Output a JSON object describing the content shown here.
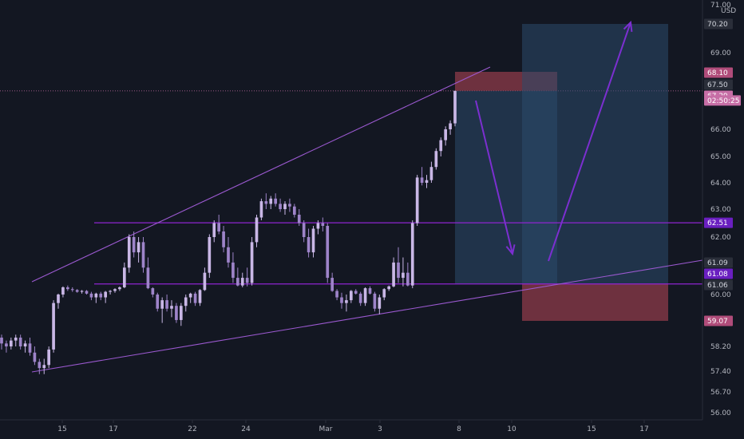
{
  "chart_data": {
    "type": "candlestick",
    "currency": "USD",
    "colors": {
      "background": "#131722",
      "candle_up": "#c9b7e6",
      "candle_down": "#9e84c9",
      "trendline": "#9b59d0",
      "level_line": "#8e24d0",
      "arrow": "#7b2fd0",
      "stop_zone": "#8d3b4a",
      "target_zone": "#2c4a6b",
      "axis_text": "#b2b5be"
    },
    "y_axis": {
      "ticks": [
        "56.00",
        "56.70",
        "57.40",
        "58.20",
        "59.07",
        "60.00",
        "61.06",
        "62.00",
        "63.00",
        "64.00",
        "65.00",
        "66.00",
        "67.50",
        "69.00",
        "70.20",
        "71.00"
      ],
      "range": [
        55.5,
        71.2
      ]
    },
    "x_axis": {
      "ticks": [
        {
          "label": "15",
          "x": 78
        },
        {
          "label": "17",
          "x": 142
        },
        {
          "label": "22",
          "x": 241
        },
        {
          "label": "24",
          "x": 308
        },
        {
          "label": "Mar",
          "x": 408
        },
        {
          "label": "3",
          "x": 476
        },
        {
          "label": "8",
          "x": 575
        },
        {
          "label": "10",
          "x": 641
        },
        {
          "label": "15",
          "x": 741
        },
        {
          "label": "17",
          "x": 807
        }
      ]
    },
    "price_tags": [
      {
        "label": "70.20",
        "bg": "#2a2e39",
        "fg": "#d1d4dc"
      },
      {
        "label": "68.10",
        "bg": "#b04c7a",
        "fg": "#ffffff"
      },
      {
        "label": "67.50",
        "bg": "#2a2e39",
        "fg": "#d1d4dc"
      },
      {
        "label": "67.29",
        "bg": "#c76ea6",
        "fg": "#ffffff"
      },
      {
        "label": "02:50:25",
        "bg": "#c76ea6",
        "fg": "#ffffff"
      },
      {
        "label": "62.51",
        "bg": "#6a1fc0",
        "fg": "#ffffff"
      },
      {
        "label": "61.09",
        "bg": "#2a2e39",
        "fg": "#d1d4dc"
      },
      {
        "label": "61.08",
        "bg": "#6a1fc0",
        "fg": "#ffffff"
      },
      {
        "label": "61.06",
        "bg": "#2a2e39",
        "fg": "#d1d4dc"
      },
      {
        "label": "59.07",
        "bg": "#b04c7a",
        "fg": "#ffffff"
      }
    ],
    "horizontal_levels": [
      62.51,
      61.08
    ],
    "last_price": 67.29,
    "candles": [
      [
        58.5,
        58.6,
        58.1,
        58.3
      ],
      [
        58.3,
        58.4,
        58.0,
        58.2
      ],
      [
        58.2,
        58.5,
        58.1,
        58.4
      ],
      [
        58.4,
        58.6,
        58.2,
        58.5
      ],
      [
        58.5,
        58.6,
        58.1,
        58.2
      ],
      [
        58.2,
        58.4,
        58.0,
        58.3
      ],
      [
        58.3,
        58.5,
        57.9,
        58.0
      ],
      [
        58.0,
        58.2,
        57.6,
        57.7
      ],
      [
        57.7,
        57.8,
        57.3,
        57.5
      ],
      [
        57.5,
        57.8,
        57.3,
        57.6
      ],
      [
        57.6,
        58.2,
        57.5,
        58.1
      ],
      [
        58.1,
        59.8,
        58.0,
        59.7
      ],
      [
        59.7,
        60.1,
        59.5,
        60.0
      ],
      [
        60.0,
        60.9,
        59.9,
        60.8
      ],
      [
        60.8,
        61.0,
        60.4,
        60.6
      ],
      [
        60.6,
        60.8,
        60.3,
        60.5
      ],
      [
        60.5,
        60.6,
        60.2,
        60.3
      ],
      [
        60.3,
        60.5,
        60.1,
        60.4
      ],
      [
        60.4,
        60.5,
        60.0,
        60.1
      ],
      [
        60.1,
        60.3,
        59.8,
        59.9
      ],
      [
        59.9,
        60.2,
        59.7,
        60.1
      ],
      [
        60.1,
        60.3,
        59.8,
        59.9
      ],
      [
        59.9,
        60.4,
        59.7,
        60.3
      ],
      [
        60.3,
        60.5,
        60.0,
        60.4
      ],
      [
        60.4,
        60.7,
        60.2,
        60.6
      ],
      [
        60.6,
        60.9,
        60.4,
        60.8
      ],
      [
        60.8,
        61.5,
        60.7,
        61.4
      ],
      [
        61.4,
        62.1,
        61.3,
        62.0
      ],
      [
        62.0,
        62.2,
        61.6,
        61.7
      ],
      [
        61.7,
        62.0,
        61.5,
        61.9
      ],
      [
        61.9,
        62.0,
        61.3,
        61.4
      ],
      [
        61.4,
        61.6,
        60.6,
        60.7
      ],
      [
        60.7,
        60.8,
        59.9,
        60.0
      ],
      [
        60.0,
        60.2,
        59.4,
        59.5
      ],
      [
        59.5,
        59.9,
        59.0,
        59.8
      ],
      [
        59.8,
        60.0,
        59.4,
        59.5
      ],
      [
        59.5,
        59.8,
        59.2,
        59.6
      ],
      [
        59.6,
        59.7,
        59.0,
        59.1
      ],
      [
        59.1,
        59.7,
        58.9,
        59.6
      ],
      [
        59.6,
        60.0,
        59.4,
        59.9
      ],
      [
        59.9,
        60.2,
        59.7,
        60.1
      ],
      [
        60.1,
        60.3,
        59.6,
        59.7
      ],
      [
        59.7,
        60.6,
        59.6,
        60.5
      ],
      [
        60.5,
        61.4,
        60.4,
        61.3
      ],
      [
        61.3,
        62.1,
        61.2,
        62.0
      ],
      [
        62.0,
        62.6,
        61.9,
        62.5
      ],
      [
        62.5,
        62.8,
        62.1,
        62.2
      ],
      [
        62.2,
        62.4,
        61.7,
        61.8
      ],
      [
        61.8,
        62.0,
        61.4,
        61.5
      ],
      [
        61.5,
        61.7,
        61.1,
        61.2
      ],
      [
        61.2,
        61.4,
        60.9,
        61.0
      ],
      [
        61.0,
        61.3,
        60.8,
        61.2
      ],
      [
        61.2,
        61.4,
        60.9,
        61.1
      ],
      [
        61.1,
        62.0,
        61.0,
        61.9
      ],
      [
        61.9,
        62.8,
        61.8,
        62.7
      ],
      [
        62.7,
        63.4,
        62.6,
        63.3
      ],
      [
        63.3,
        63.6,
        63.0,
        63.2
      ],
      [
        63.2,
        63.5,
        63.0,
        63.4
      ],
      [
        63.4,
        63.6,
        63.1,
        63.2
      ],
      [
        63.2,
        63.4,
        62.9,
        63.0
      ],
      [
        63.0,
        63.3,
        62.8,
        63.2
      ],
      [
        63.2,
        63.4,
        62.9,
        63.1
      ],
      [
        63.1,
        63.2,
        62.7,
        62.8
      ],
      [
        62.8,
        63.0,
        62.4,
        62.5
      ],
      [
        62.5,
        62.6,
        61.9,
        62.0
      ],
      [
        62.0,
        62.3,
        61.6,
        61.7
      ],
      [
        61.7,
        62.4,
        61.6,
        62.3
      ],
      [
        62.3,
        62.6,
        62.1,
        62.5
      ],
      [
        62.5,
        62.7,
        62.2,
        62.4
      ],
      [
        62.4,
        62.5,
        61.1,
        61.2
      ],
      [
        61.2,
        61.3,
        60.3,
        60.4
      ],
      [
        60.4,
        60.6,
        59.8,
        59.9
      ],
      [
        59.9,
        60.2,
        59.5,
        59.7
      ],
      [
        59.7,
        60.0,
        59.4,
        59.8
      ],
      [
        59.8,
        60.5,
        59.7,
        60.4
      ],
      [
        60.4,
        60.6,
        60.0,
        60.1
      ],
      [
        60.1,
        60.3,
        59.6,
        59.7
      ],
      [
        59.7,
        60.8,
        59.6,
        60.7
      ],
      [
        60.7,
        60.9,
        60.0,
        60.1
      ],
      [
        60.1,
        60.3,
        59.4,
        59.5
      ],
      [
        59.5,
        60.0,
        59.3,
        59.9
      ],
      [
        59.9,
        60.7,
        59.8,
        60.6
      ],
      [
        60.6,
        61.0,
        60.4,
        60.9
      ],
      [
        60.9,
        61.6,
        60.8,
        61.5
      ],
      [
        61.5,
        61.8,
        61.1,
        61.2
      ],
      [
        61.2,
        61.6,
        60.9,
        61.3
      ],
      [
        61.3,
        61.5,
        60.9,
        61.0
      ],
      [
        61.0,
        62.6,
        60.7,
        62.5
      ],
      [
        62.5,
        64.3,
        62.4,
        64.2
      ],
      [
        64.2,
        64.6,
        63.9,
        64.0
      ],
      [
        64.0,
        64.3,
        63.8,
        64.1
      ],
      [
        64.1,
        64.8,
        64.0,
        64.6
      ],
      [
        64.6,
        65.3,
        64.5,
        65.2
      ],
      [
        65.2,
        65.7,
        65.0,
        65.6
      ],
      [
        65.6,
        66.1,
        65.4,
        66.0
      ],
      [
        66.0,
        66.3,
        65.8,
        66.2
      ],
      [
        66.2,
        67.3,
        66.1,
        67.29
      ]
    ]
  }
}
